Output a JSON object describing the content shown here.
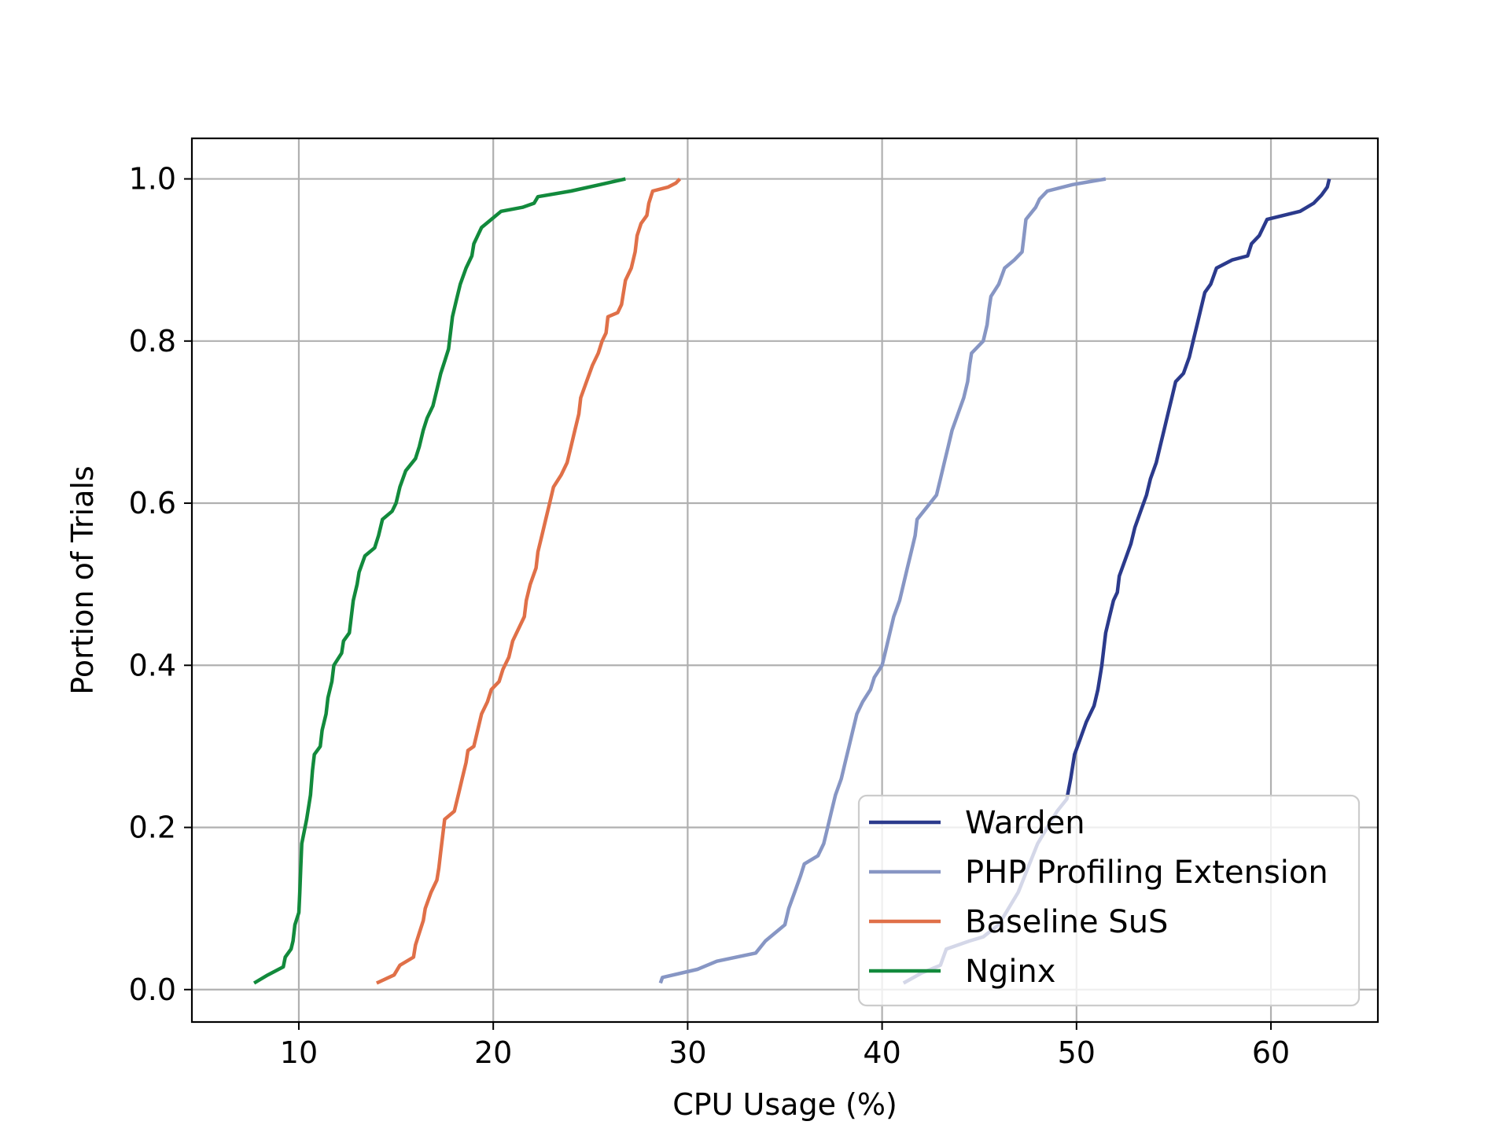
{
  "chart_data": {
    "type": "line",
    "title": "",
    "xlabel": "CPU Usage (%)",
    "ylabel": "Portion of Trials",
    "xlim": [
      4.5,
      65.5
    ],
    "ylim": [
      -0.04,
      1.05
    ],
    "x_ticks": [
      10,
      20,
      30,
      40,
      50,
      60
    ],
    "x_tick_labels": [
      "10",
      "20",
      "30",
      "40",
      "50",
      "60"
    ],
    "y_ticks": [
      0.0,
      0.2,
      0.4,
      0.6,
      0.8,
      1.0
    ],
    "y_tick_labels": [
      "0.0",
      "0.2",
      "0.4",
      "0.6",
      "0.8",
      "1.0"
    ],
    "grid": true,
    "legend_position": "bottom-right",
    "series": [
      {
        "name": "Warden",
        "color": "#2b3a8c",
        "points": [
          [
            41.1,
            0.008
          ],
          [
            42.0,
            0.02
          ],
          [
            43.0,
            0.03
          ],
          [
            43.3,
            0.05
          ],
          [
            44.5,
            0.06
          ],
          [
            45.2,
            0.065
          ],
          [
            46.0,
            0.08
          ],
          [
            46.5,
            0.1
          ],
          [
            47.0,
            0.12
          ],
          [
            47.5,
            0.15
          ],
          [
            48.0,
            0.18
          ],
          [
            48.5,
            0.2
          ],
          [
            49.0,
            0.22
          ],
          [
            49.5,
            0.235
          ],
          [
            49.7,
            0.26
          ],
          [
            49.9,
            0.29
          ],
          [
            50.2,
            0.31
          ],
          [
            50.5,
            0.33
          ],
          [
            50.9,
            0.35
          ],
          [
            51.1,
            0.37
          ],
          [
            51.3,
            0.4
          ],
          [
            51.4,
            0.42
          ],
          [
            51.5,
            0.44
          ],
          [
            51.7,
            0.46
          ],
          [
            51.9,
            0.48
          ],
          [
            52.1,
            0.49
          ],
          [
            52.2,
            0.51
          ],
          [
            52.5,
            0.53
          ],
          [
            52.8,
            0.55
          ],
          [
            53.0,
            0.57
          ],
          [
            53.3,
            0.59
          ],
          [
            53.6,
            0.61
          ],
          [
            53.8,
            0.63
          ],
          [
            54.1,
            0.65
          ],
          [
            54.3,
            0.67
          ],
          [
            54.5,
            0.69
          ],
          [
            54.7,
            0.71
          ],
          [
            54.9,
            0.73
          ],
          [
            55.1,
            0.75
          ],
          [
            55.5,
            0.76
          ],
          [
            55.8,
            0.78
          ],
          [
            56.0,
            0.8
          ],
          [
            56.2,
            0.82
          ],
          [
            56.4,
            0.84
          ],
          [
            56.6,
            0.86
          ],
          [
            56.9,
            0.87
          ],
          [
            57.2,
            0.89
          ],
          [
            58.0,
            0.9
          ],
          [
            58.8,
            0.905
          ],
          [
            59.0,
            0.92
          ],
          [
            59.4,
            0.93
          ],
          [
            59.8,
            0.95
          ],
          [
            61.5,
            0.96
          ],
          [
            62.2,
            0.97
          ],
          [
            62.6,
            0.98
          ],
          [
            62.9,
            0.99
          ],
          [
            63.0,
            1.0
          ]
        ]
      },
      {
        "name": "PHP Profiling Extension",
        "color": "#8796c4",
        "points": [
          [
            28.6,
            0.008
          ],
          [
            28.7,
            0.015
          ],
          [
            30.5,
            0.025
          ],
          [
            31.5,
            0.035
          ],
          [
            33.5,
            0.045
          ],
          [
            34.0,
            0.06
          ],
          [
            34.5,
            0.07
          ],
          [
            35.0,
            0.08
          ],
          [
            35.2,
            0.1
          ],
          [
            35.5,
            0.12
          ],
          [
            35.8,
            0.14
          ],
          [
            36.0,
            0.155
          ],
          [
            36.7,
            0.165
          ],
          [
            37.0,
            0.18
          ],
          [
            37.2,
            0.2
          ],
          [
            37.4,
            0.22
          ],
          [
            37.6,
            0.24
          ],
          [
            37.9,
            0.26
          ],
          [
            38.1,
            0.28
          ],
          [
            38.3,
            0.3
          ],
          [
            38.5,
            0.32
          ],
          [
            38.7,
            0.34
          ],
          [
            39.0,
            0.355
          ],
          [
            39.4,
            0.37
          ],
          [
            39.6,
            0.385
          ],
          [
            40.0,
            0.4
          ],
          [
            40.2,
            0.42
          ],
          [
            40.4,
            0.44
          ],
          [
            40.6,
            0.46
          ],
          [
            40.9,
            0.48
          ],
          [
            41.1,
            0.5
          ],
          [
            41.3,
            0.52
          ],
          [
            41.5,
            0.54
          ],
          [
            41.7,
            0.56
          ],
          [
            41.8,
            0.58
          ],
          [
            42.3,
            0.595
          ],
          [
            42.8,
            0.61
          ],
          [
            43.0,
            0.63
          ],
          [
            43.2,
            0.65
          ],
          [
            43.4,
            0.67
          ],
          [
            43.6,
            0.69
          ],
          [
            43.9,
            0.71
          ],
          [
            44.2,
            0.73
          ],
          [
            44.4,
            0.75
          ],
          [
            44.5,
            0.77
          ],
          [
            44.6,
            0.785
          ],
          [
            45.2,
            0.8
          ],
          [
            45.4,
            0.82
          ],
          [
            45.5,
            0.84
          ],
          [
            45.6,
            0.855
          ],
          [
            46.0,
            0.87
          ],
          [
            46.3,
            0.89
          ],
          [
            46.8,
            0.9
          ],
          [
            47.2,
            0.91
          ],
          [
            47.3,
            0.93
          ],
          [
            47.4,
            0.95
          ],
          [
            47.9,
            0.965
          ],
          [
            48.1,
            0.975
          ],
          [
            48.5,
            0.985
          ],
          [
            49.8,
            0.993
          ],
          [
            51.5,
            1.0
          ]
        ]
      },
      {
        "name": "Baseline SuS",
        "color": "#e07048",
        "points": [
          [
            14.0,
            0.008
          ],
          [
            14.9,
            0.018
          ],
          [
            15.2,
            0.03
          ],
          [
            15.9,
            0.04
          ],
          [
            16.0,
            0.055
          ],
          [
            16.2,
            0.07
          ],
          [
            16.4,
            0.085
          ],
          [
            16.5,
            0.1
          ],
          [
            16.8,
            0.12
          ],
          [
            17.1,
            0.135
          ],
          [
            17.2,
            0.15
          ],
          [
            17.3,
            0.17
          ],
          [
            17.4,
            0.19
          ],
          [
            17.5,
            0.21
          ],
          [
            18.0,
            0.22
          ],
          [
            18.2,
            0.24
          ],
          [
            18.4,
            0.26
          ],
          [
            18.6,
            0.28
          ],
          [
            18.7,
            0.295
          ],
          [
            19.0,
            0.3
          ],
          [
            19.2,
            0.32
          ],
          [
            19.4,
            0.34
          ],
          [
            19.7,
            0.355
          ],
          [
            19.9,
            0.37
          ],
          [
            20.3,
            0.38
          ],
          [
            20.5,
            0.395
          ],
          [
            20.8,
            0.41
          ],
          [
            21.0,
            0.43
          ],
          [
            21.3,
            0.445
          ],
          [
            21.6,
            0.46
          ],
          [
            21.7,
            0.48
          ],
          [
            21.9,
            0.5
          ],
          [
            22.2,
            0.52
          ],
          [
            22.3,
            0.54
          ],
          [
            22.5,
            0.56
          ],
          [
            22.7,
            0.58
          ],
          [
            22.9,
            0.6
          ],
          [
            23.1,
            0.62
          ],
          [
            23.5,
            0.635
          ],
          [
            23.8,
            0.65
          ],
          [
            24.0,
            0.67
          ],
          [
            24.2,
            0.69
          ],
          [
            24.4,
            0.71
          ],
          [
            24.5,
            0.73
          ],
          [
            24.8,
            0.75
          ],
          [
            25.1,
            0.77
          ],
          [
            25.4,
            0.785
          ],
          [
            25.6,
            0.8
          ],
          [
            25.8,
            0.81
          ],
          [
            25.9,
            0.83
          ],
          [
            26.4,
            0.835
          ],
          [
            26.6,
            0.845
          ],
          [
            26.7,
            0.86
          ],
          [
            26.8,
            0.875
          ],
          [
            27.1,
            0.89
          ],
          [
            27.3,
            0.91
          ],
          [
            27.4,
            0.93
          ],
          [
            27.6,
            0.945
          ],
          [
            27.9,
            0.955
          ],
          [
            28.0,
            0.97
          ],
          [
            28.2,
            0.985
          ],
          [
            29.0,
            0.99
          ],
          [
            29.4,
            0.995
          ],
          [
            29.6,
            1.0
          ]
        ]
      },
      {
        "name": "Nginx",
        "color": "#128a3c",
        "points": [
          [
            7.7,
            0.008
          ],
          [
            8.4,
            0.018
          ],
          [
            9.2,
            0.028
          ],
          [
            9.3,
            0.04
          ],
          [
            9.6,
            0.05
          ],
          [
            9.7,
            0.06
          ],
          [
            9.8,
            0.08
          ],
          [
            10.0,
            0.095
          ],
          [
            10.05,
            0.12
          ],
          [
            10.1,
            0.15
          ],
          [
            10.15,
            0.18
          ],
          [
            10.4,
            0.21
          ],
          [
            10.6,
            0.24
          ],
          [
            10.7,
            0.27
          ],
          [
            10.8,
            0.29
          ],
          [
            11.1,
            0.3
          ],
          [
            11.2,
            0.32
          ],
          [
            11.4,
            0.34
          ],
          [
            11.5,
            0.36
          ],
          [
            11.7,
            0.38
          ],
          [
            11.8,
            0.4
          ],
          [
            12.2,
            0.415
          ],
          [
            12.3,
            0.43
          ],
          [
            12.6,
            0.44
          ],
          [
            12.7,
            0.46
          ],
          [
            12.8,
            0.48
          ],
          [
            13.0,
            0.5
          ],
          [
            13.1,
            0.515
          ],
          [
            13.4,
            0.535
          ],
          [
            13.9,
            0.545
          ],
          [
            14.1,
            0.56
          ],
          [
            14.3,
            0.58
          ],
          [
            14.8,
            0.59
          ],
          [
            15.0,
            0.6
          ],
          [
            15.2,
            0.62
          ],
          [
            15.5,
            0.64
          ],
          [
            16.0,
            0.655
          ],
          [
            16.2,
            0.67
          ],
          [
            16.4,
            0.69
          ],
          [
            16.6,
            0.705
          ],
          [
            16.9,
            0.72
          ],
          [
            17.1,
            0.74
          ],
          [
            17.3,
            0.76
          ],
          [
            17.5,
            0.775
          ],
          [
            17.7,
            0.79
          ],
          [
            17.8,
            0.81
          ],
          [
            17.9,
            0.83
          ],
          [
            18.1,
            0.85
          ],
          [
            18.3,
            0.87
          ],
          [
            18.6,
            0.89
          ],
          [
            18.9,
            0.905
          ],
          [
            19.0,
            0.92
          ],
          [
            19.4,
            0.94
          ],
          [
            19.9,
            0.95
          ],
          [
            20.4,
            0.96
          ],
          [
            21.5,
            0.965
          ],
          [
            22.1,
            0.97
          ],
          [
            22.3,
            0.978
          ],
          [
            24.0,
            0.985
          ],
          [
            25.5,
            0.993
          ],
          [
            26.8,
            1.0
          ]
        ]
      }
    ]
  }
}
